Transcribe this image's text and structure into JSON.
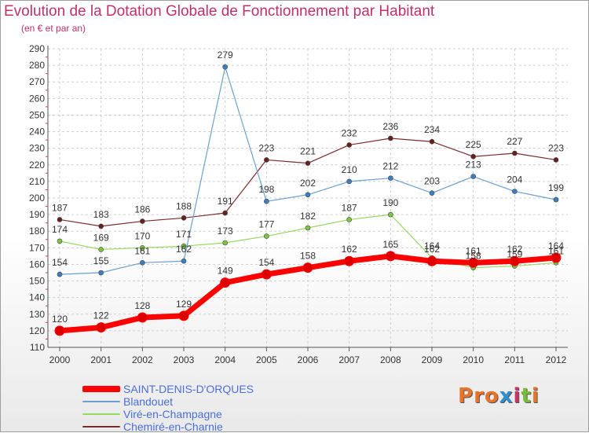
{
  "title": "Evolution de la Dotation Globale de Fonctionnement par Habitant",
  "subtitle": "(en € et par an)",
  "logo": {
    "text": "Proxiti",
    "letter_colors": [
      "#e8742a",
      "#e8742a",
      "#e8742a",
      "#2f8fcf",
      "#cc3366",
      "#7bbb3a",
      "#e8742a"
    ]
  },
  "chart_data": {
    "type": "line",
    "x": [
      "2000",
      "2001",
      "2002",
      "2003",
      "2004",
      "2005",
      "2006",
      "2007",
      "2008",
      "2009",
      "2010",
      "2011",
      "2012"
    ],
    "ylim": [
      110,
      290
    ],
    "y_ticks": [
      110,
      120,
      130,
      140,
      150,
      160,
      170,
      180,
      190,
      200,
      210,
      220,
      230,
      240,
      250,
      260,
      270,
      280,
      290
    ],
    "grid": true,
    "legend_position": "bottom-left",
    "series": [
      {
        "name": "SAINT-DENIS-D'ORQUES",
        "color": "#ff0000",
        "marker_color": "#dd0000",
        "width": 7,
        "values": [
          120,
          122,
          128,
          129,
          149,
          154,
          158,
          162,
          165,
          162,
          161,
          162,
          164
        ],
        "labels": [
          "120",
          "122",
          "128",
          "129",
          "149",
          "154",
          "158",
          "162",
          "165",
          "162",
          "161",
          "162",
          "164"
        ]
      },
      {
        "name": "Blandouet",
        "color": "#6b9fd1",
        "marker_color": "#3b7fc4",
        "width": 1.2,
        "values": [
          154,
          155,
          161,
          162,
          279,
          198,
          202,
          210,
          212,
          203,
          213,
          204,
          199
        ],
        "labels": [
          "154",
          "155",
          "161",
          "162",
          "279",
          "198",
          "202",
          "210",
          "212",
          "203",
          "213",
          "204",
          "199"
        ]
      },
      {
        "name": "Viré-en-Champagne",
        "color": "#96d860",
        "marker_color": "#7cc640",
        "width": 1.2,
        "values": [
          174,
          169,
          170,
          171,
          173,
          177,
          182,
          187,
          190,
          164,
          158,
          159,
          161
        ],
        "labels": [
          "174",
          "169",
          "170",
          "171",
          "173",
          "177",
          "182",
          "187",
          "190",
          "164",
          "158",
          "159",
          "161"
        ]
      },
      {
        "name": "Chemiré-en-Charnie",
        "color": "#7a2c2c",
        "marker_color": "#6a1f1f",
        "width": 1.2,
        "values": [
          187,
          183,
          186,
          188,
          191,
          223,
          221,
          232,
          236,
          234,
          225,
          227,
          223
        ],
        "labels": [
          "187",
          "183",
          "186",
          "188",
          "191",
          "223",
          "221",
          "232",
          "236",
          "234",
          "225",
          "227",
          "223"
        ]
      }
    ]
  }
}
